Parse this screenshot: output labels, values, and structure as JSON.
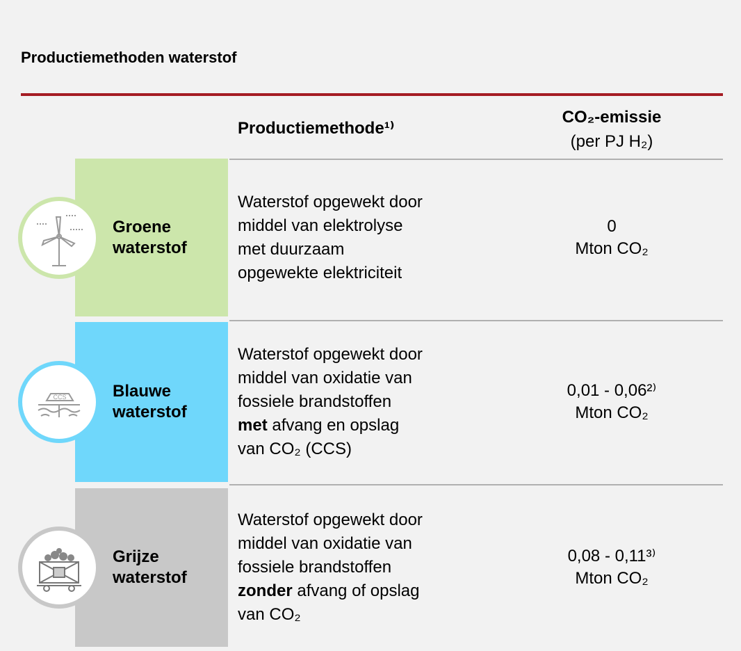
{
  "title": "Productiemethoden waterstof",
  "header": {
    "method": "Productiemethode¹⁾",
    "emission": "CO₂-emissie",
    "emission_unit": "(per PJ H₂)"
  },
  "rows": [
    {
      "label": [
        "Groene",
        "waterstof"
      ],
      "color": "#cce6ab",
      "ring": "#cce6ab",
      "description": [
        [
          {
            "text": "Waterstof opgewekt door"
          }
        ],
        [
          {
            "text": "middel van elektrolyse"
          }
        ],
        [
          {
            "text": "met duurzaam"
          }
        ],
        [
          {
            "text": "opgewekte elektriciteit"
          }
        ]
      ],
      "emission": [
        "0",
        "Mton CO₂"
      ]
    },
    {
      "label": [
        "Blauwe",
        "waterstof"
      ],
      "color": "#6fd7fb",
      "ring": "#6fd7fb",
      "description": [
        [
          {
            "text": "Waterstof opgewekt door"
          }
        ],
        [
          {
            "text": "middel van oxidatie van"
          }
        ],
        [
          {
            "text": "fossiele brandstoffen"
          }
        ],
        [
          {
            "text": "met",
            "bold": true
          },
          {
            "text": " afvang en opslag"
          }
        ],
        [
          {
            "text": "van CO₂ (CCS)"
          }
        ]
      ],
      "emission": [
        "0,01 - 0,06²⁾",
        "Mton CO₂"
      ]
    },
    {
      "label": [
        "Grijze",
        "waterstof"
      ],
      "color": "#c8c8c8",
      "ring": "#c8c8c8",
      "description": [
        [
          {
            "text": "Waterstof opgewekt door"
          }
        ],
        [
          {
            "text": "middel van oxidatie van"
          }
        ],
        [
          {
            "text": "fossiele brandstoffen"
          }
        ],
        [
          {
            "text": "zonder",
            "bold": true
          },
          {
            "text": " afvang of opslag"
          }
        ],
        [
          {
            "text": "van CO₂"
          }
        ]
      ],
      "emission": [
        "0,08 - 0,11³⁾",
        "Mton CO₂"
      ]
    }
  ]
}
